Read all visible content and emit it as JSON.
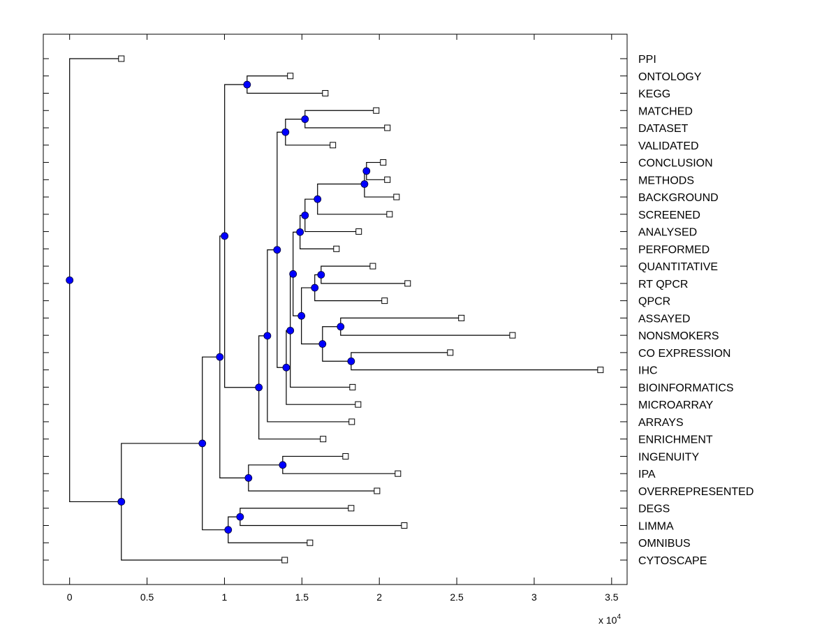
{
  "chart_data": {
    "type": "dendrogram",
    "title": "",
    "xlabel": "",
    "ylabel": "",
    "x_multiplier_label": "x 10",
    "x_multiplier_exponent": "4",
    "xlim": [
      -0.17,
      3.6
    ],
    "xticks": [
      0,
      0.5,
      1,
      1.5,
      2,
      2.5,
      3,
      3.5
    ],
    "xtick_labels": [
      "0",
      "0.5",
      "1",
      "1.5",
      "2",
      "2.5",
      "3",
      "3.5"
    ],
    "grid": false,
    "colors": {
      "internal_node": "#0000ff",
      "leaf_marker": "#ffffff",
      "line": "#000000"
    },
    "leaves": [
      {
        "label": "PPI",
        "x": 0.334
      },
      {
        "label": "ONTOLOGY",
        "x": 1.425
      },
      {
        "label": "KEGG",
        "x": 1.651
      },
      {
        "label": "MATCHED",
        "x": 1.98
      },
      {
        "label": "DATASET",
        "x": 2.052
      },
      {
        "label": "VALIDATED",
        "x": 1.7
      },
      {
        "label": "CONCLUSION",
        "x": 2.025
      },
      {
        "label": "METHODS",
        "x": 2.052
      },
      {
        "label": "BACKGROUND",
        "x": 2.111
      },
      {
        "label": "SCREENED",
        "x": 2.066
      },
      {
        "label": "ANALYSED",
        "x": 1.867
      },
      {
        "label": "PERFORMED",
        "x": 1.723
      },
      {
        "label": "QUANTITATIVE",
        "x": 1.958
      },
      {
        "label": "RT QPCR",
        "x": 2.183
      },
      {
        "label": "QPCR",
        "x": 2.034
      },
      {
        "label": "ASSAYED",
        "x": 2.53
      },
      {
        "label": "NONSMOKERS",
        "x": 2.86
      },
      {
        "label": "CO EXPRESSION",
        "x": 2.458
      },
      {
        "label": "IHC",
        "x": 3.428
      },
      {
        "label": "BIOINFORMATICS",
        "x": 1.827
      },
      {
        "label": "MICROARRAY",
        "x": 1.863
      },
      {
        "label": "ARRAYS",
        "x": 1.822
      },
      {
        "label": "ENRICHMENT",
        "x": 1.637
      },
      {
        "label": "INGENUITY",
        "x": 1.782
      },
      {
        "label": "IPA",
        "x": 2.12
      },
      {
        "label": "OVERREPRESENTED",
        "x": 1.985
      },
      {
        "label": "DEGS",
        "x": 1.818
      },
      {
        "label": "LIMMA",
        "x": 2.161
      },
      {
        "label": "OMNIBUS",
        "x": 1.552
      },
      {
        "label": "CYTOSCAPE",
        "x": 1.389
      }
    ],
    "internal_nodes": [
      {
        "id": "n1",
        "x": 1.917,
        "children": [
          "L6",
          "L7"
        ]
      },
      {
        "id": "n2",
        "x": 1.904,
        "children": [
          "n1",
          "L8"
        ]
      },
      {
        "id": "n3",
        "x": 1.601,
        "children": [
          "n2",
          "L9"
        ]
      },
      {
        "id": "n4",
        "x": 1.52,
        "children": [
          "n3",
          "L10"
        ]
      },
      {
        "id": "n5",
        "x": 1.488,
        "children": [
          "n4",
          "L11"
        ]
      },
      {
        "id": "n6",
        "x": 1.52,
        "children": [
          "L3",
          "L4"
        ]
      },
      {
        "id": "n7",
        "x": 1.394,
        "children": [
          "n6",
          "L5"
        ]
      },
      {
        "id": "n8",
        "x": 1.146,
        "children": [
          "L1",
          "L2"
        ]
      },
      {
        "id": "n9",
        "x": 1.624,
        "children": [
          "L12",
          "L13"
        ]
      },
      {
        "id": "n10",
        "x": 1.583,
        "children": [
          "n9",
          "L14"
        ]
      },
      {
        "id": "n11",
        "x": 1.75,
        "children": [
          "L15",
          "L16"
        ]
      },
      {
        "id": "n12",
        "x": 1.818,
        "children": [
          "L17",
          "L18"
        ]
      },
      {
        "id": "n13",
        "x": 1.633,
        "children": [
          "n11",
          "n12"
        ]
      },
      {
        "id": "n14",
        "x": 1.497,
        "children": [
          "n10",
          "n13"
        ]
      },
      {
        "id": "n15",
        "x": 1.443,
        "children": [
          "n5",
          "n14"
        ]
      },
      {
        "id": "n16",
        "x": 1.425,
        "children": [
          "n15",
          "L19"
        ]
      },
      {
        "id": "n17",
        "x": 1.399,
        "children": [
          "n16",
          "L20"
        ]
      },
      {
        "id": "n18",
        "x": 1.34,
        "children": [
          "n7",
          "n17"
        ]
      },
      {
        "id": "n19",
        "x": 1.277,
        "children": [
          "n18",
          "L21"
        ]
      },
      {
        "id": "n20",
        "x": 1.222,
        "children": [
          "n19",
          "L22"
        ]
      },
      {
        "id": "n21",
        "x": 1.001,
        "children": [
          "n8",
          "n20"
        ]
      },
      {
        "id": "n22",
        "x": 1.376,
        "children": [
          "L23",
          "L24"
        ]
      },
      {
        "id": "n23",
        "x": 1.155,
        "children": [
          "n22",
          "L25"
        ]
      },
      {
        "id": "n24",
        "x": 0.97,
        "children": [
          "n21",
          "n23"
        ]
      },
      {
        "id": "n25",
        "x": 1.101,
        "children": [
          "L26",
          "L27"
        ]
      },
      {
        "id": "n26",
        "x": 1.024,
        "children": [
          "n25",
          "L28"
        ]
      },
      {
        "id": "n27",
        "x": 0.857,
        "children": [
          "n24",
          "n26"
        ]
      },
      {
        "id": "n28",
        "x": 0.334,
        "children": [
          "n27",
          "L29"
        ]
      },
      {
        "id": "n29",
        "x": 0.0,
        "children": [
          "L0",
          "n28"
        ]
      }
    ]
  }
}
